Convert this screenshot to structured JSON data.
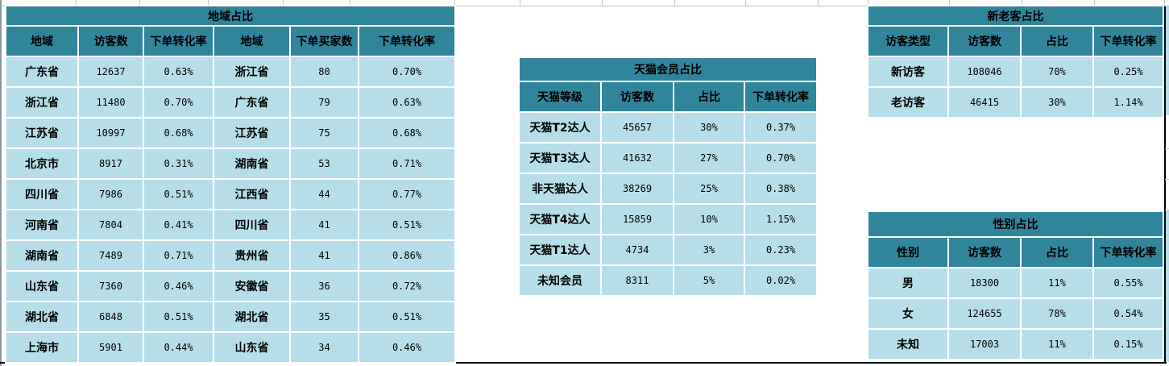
{
  "colors": {
    "header_teal": "#31859B",
    "row_blue": "#B7DEE8",
    "gap_white": "#ffffff",
    "edge_black": "#000000"
  },
  "tables": {
    "region": {
      "title": "地域占比",
      "headers": [
        "地域",
        "访客数",
        "下单转化率",
        "地域",
        "下单买家数",
        "下单转化率"
      ],
      "rows": [
        [
          "广东省",
          "12637",
          "0.63%",
          "浙江省",
          "80",
          "0.70%"
        ],
        [
          "浙江省",
          "11480",
          "0.70%",
          "广东省",
          "79",
          "0.63%"
        ],
        [
          "江苏省",
          "10997",
          "0.68%",
          "江苏省",
          "75",
          "0.68%"
        ],
        [
          "北京市",
          "8917",
          "0.31%",
          "湖南省",
          "53",
          "0.71%"
        ],
        [
          "四川省",
          "7986",
          "0.51%",
          "江西省",
          "44",
          "0.77%"
        ],
        [
          "河南省",
          "7804",
          "0.41%",
          "四川省",
          "41",
          "0.51%"
        ],
        [
          "湖南省",
          "7489",
          "0.71%",
          "贵州省",
          "41",
          "0.86%"
        ],
        [
          "山东省",
          "7360",
          "0.46%",
          "安徽省",
          "36",
          "0.72%"
        ],
        [
          "湖北省",
          "6848",
          "0.51%",
          "湖北省",
          "35",
          "0.51%"
        ],
        [
          "上海市",
          "5901",
          "0.44%",
          "山东省",
          "34",
          "0.46%"
        ]
      ]
    },
    "tmall": {
      "title": "天猫会员占比",
      "headers": [
        "天猫等级",
        "访客数",
        "占比",
        "下单转化率"
      ],
      "rows": [
        [
          "天猫T2达人",
          "45657",
          "30%",
          "0.37%"
        ],
        [
          "天猫T3达人",
          "41632",
          "27%",
          "0.70%"
        ],
        [
          "非天猫达人",
          "38269",
          "25%",
          "0.38%"
        ],
        [
          "天猫T4达人",
          "15859",
          "10%",
          "1.15%"
        ],
        [
          "天猫T1达人",
          "4734",
          "3%",
          "0.23%"
        ],
        [
          "未知会员",
          "8311",
          "5%",
          "0.02%"
        ]
      ]
    },
    "visitor_type": {
      "title": "新老客占比",
      "headers": [
        "访客类型",
        "访客数",
        "占比",
        "下单转化率"
      ],
      "rows": [
        [
          "新访客",
          "108046",
          "70%",
          "0.25%"
        ],
        [
          "老访客",
          "46415",
          "30%",
          "1.14%"
        ]
      ]
    },
    "gender": {
      "title": "性别占比",
      "headers": [
        "性别",
        "访客数",
        "占比",
        "下单转化率"
      ],
      "rows": [
        [
          "男",
          "18300",
          "11%",
          "0.55%"
        ],
        [
          "女",
          "124655",
          "78%",
          "0.54%"
        ],
        [
          "未知",
          "17003",
          "11%",
          "0.15%"
        ]
      ]
    }
  }
}
